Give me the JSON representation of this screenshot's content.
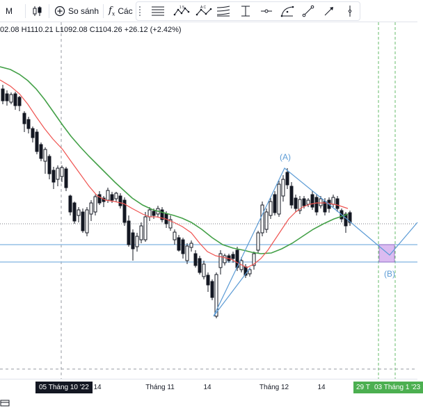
{
  "toolbar": {
    "interval_label": "M",
    "compare_label": "So sánh",
    "indicators_label": "Các",
    "drawing_tools": [
      "fib-retracement-icon",
      "xabcd-pattern-icon",
      "abcd-pattern-icon",
      "parallel-channel-icon",
      "price-range-icon",
      "horizontal-ray-icon",
      "curve-icon",
      "trend-line-icon",
      "arrow-marker-icon",
      "vertical-line-icon"
    ]
  },
  "ohlc": {
    "open": "02.08",
    "high": "H1110.21",
    "low": "L1092.08",
    "close": "C1104.26",
    "change": "+26.12 (+2.42%)"
  },
  "pattern_labels": {
    "a": "(A)",
    "b": "(B)"
  },
  "x_axis": {
    "highlight_date": "05 Tháng 10 '22",
    "ticks": [
      {
        "label": "14"
      },
      {
        "label": "Tháng 11"
      },
      {
        "label": "14"
      },
      {
        "label": "Tháng 12"
      },
      {
        "label": "14"
      }
    ],
    "future_1": "29 T",
    "future_2": "03 Tháng 1 '23"
  },
  "colors": {
    "up": "#ffffff",
    "down": "#131722",
    "ma_short": "#ef5350",
    "ma_long": "#43a047",
    "pattern": "#5b9bd5",
    "target_box": "#d8b4f0"
  }
}
